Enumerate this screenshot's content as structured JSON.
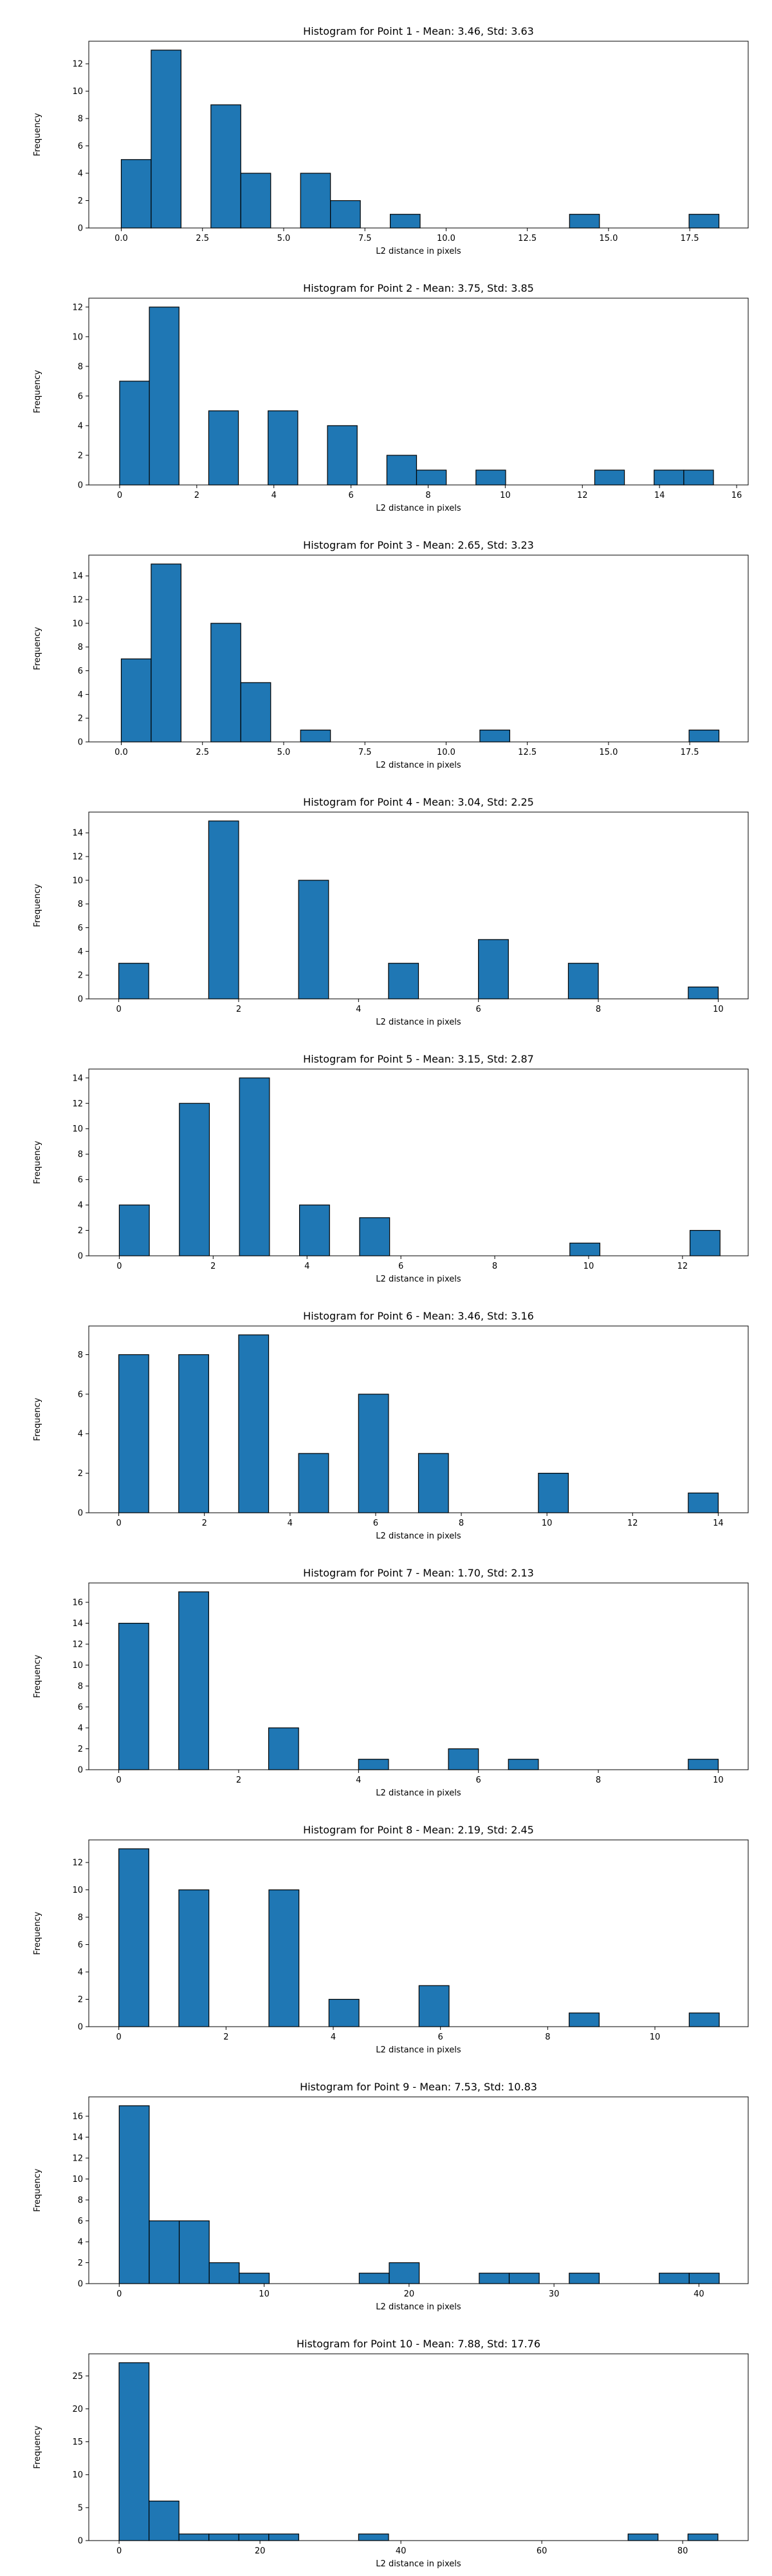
{
  "colors": {
    "bar_fill": "#1f77b4",
    "bar_edge": "#000000",
    "axes": "#000000"
  },
  "chart_data": [
    {
      "type": "bar",
      "title": "Histogram for Point 1 - Mean: 3.46, Std: 3.63",
      "xlabel": "L2 distance in pixels",
      "ylabel": "Frequency",
      "xlim": [
        -1.0,
        19.3
      ],
      "ylim": [
        0,
        13.65
      ],
      "xticks": [
        0.0,
        2.5,
        5.0,
        7.5,
        10.0,
        12.5,
        15.0,
        17.5
      ],
      "xtick_labels": [
        "0.0",
        "2.5",
        "5.0",
        "7.5",
        "10.0",
        "12.5",
        "15.0",
        "17.5"
      ],
      "yticks": [
        0,
        2,
        4,
        6,
        8,
        10,
        12
      ],
      "bin_edges": [
        0.0,
        0.92,
        1.84,
        2.76,
        3.68,
        4.6,
        5.52,
        6.44,
        7.36,
        8.28,
        9.2,
        10.12,
        11.04,
        11.96,
        12.88,
        13.8,
        14.72,
        15.64,
        16.56,
        17.48,
        18.4
      ],
      "counts": [
        5,
        13,
        0,
        9,
        4,
        0,
        4,
        2,
        0,
        1,
        0,
        0,
        0,
        0,
        0,
        1,
        0,
        0,
        0,
        1
      ]
    },
    {
      "type": "bar",
      "title": "Histogram for Point 2 - Mean: 3.75, Std: 3.85",
      "xlabel": "L2 distance in pixels",
      "ylabel": "Frequency",
      "xlim": [
        -0.8,
        16.3
      ],
      "ylim": [
        0,
        12.6
      ],
      "xticks": [
        0,
        2,
        4,
        6,
        8,
        10,
        12,
        14,
        16
      ],
      "xtick_labels": [
        "0",
        "2",
        "4",
        "6",
        "8",
        "10",
        "12",
        "14",
        "16"
      ],
      "yticks": [
        0,
        2,
        4,
        6,
        8,
        10,
        12
      ],
      "bin_edges": [
        0.0,
        0.77,
        1.54,
        2.31,
        3.08,
        3.85,
        4.62,
        5.39,
        6.16,
        6.93,
        7.7,
        8.47,
        9.24,
        10.01,
        10.78,
        11.55,
        12.32,
        13.09,
        13.86,
        14.63,
        15.4
      ],
      "counts": [
        7,
        12,
        0,
        5,
        0,
        5,
        0,
        4,
        0,
        2,
        1,
        0,
        1,
        0,
        0,
        0,
        1,
        0,
        1,
        1
      ]
    },
    {
      "type": "bar",
      "title": "Histogram for Point 3 - Mean: 2.65, Std: 3.23",
      "xlabel": "L2 distance in pixels",
      "ylabel": "Frequency",
      "xlim": [
        -1.0,
        19.3
      ],
      "ylim": [
        0,
        15.75
      ],
      "xticks": [
        0.0,
        2.5,
        5.0,
        7.5,
        10.0,
        12.5,
        15.0,
        17.5
      ],
      "xtick_labels": [
        "0.0",
        "2.5",
        "5.0",
        "7.5",
        "10.0",
        "12.5",
        "15.0",
        "17.5"
      ],
      "yticks": [
        0,
        2,
        4,
        6,
        8,
        10,
        12,
        14
      ],
      "bin_edges": [
        0.0,
        0.92,
        1.84,
        2.76,
        3.68,
        4.6,
        5.52,
        6.44,
        7.36,
        8.28,
        9.2,
        10.12,
        11.04,
        11.96,
        12.88,
        13.8,
        14.72,
        15.64,
        16.56,
        17.48,
        18.4
      ],
      "counts": [
        7,
        15,
        0,
        10,
        5,
        0,
        1,
        0,
        0,
        0,
        0,
        0,
        1,
        0,
        0,
        0,
        0,
        0,
        0,
        1
      ]
    },
    {
      "type": "bar",
      "title": "Histogram for Point 4 - Mean: 3.04, Std: 2.25",
      "xlabel": "L2 distance in pixels",
      "ylabel": "Frequency",
      "xlim": [
        -0.5,
        10.5
      ],
      "ylim": [
        0,
        15.75
      ],
      "xticks": [
        0,
        2,
        4,
        6,
        8,
        10
      ],
      "xtick_labels": [
        "0",
        "2",
        "4",
        "6",
        "8",
        "10"
      ],
      "yticks": [
        0,
        2,
        4,
        6,
        8,
        10,
        12,
        14
      ],
      "bin_edges": [
        0.0,
        0.5,
        1.0,
        1.5,
        2.0,
        2.5,
        3.0,
        3.5,
        4.0,
        4.5,
        5.0,
        5.5,
        6.0,
        6.5,
        7.0,
        7.5,
        8.0,
        8.5,
        9.0,
        9.5,
        10.0
      ],
      "counts": [
        3,
        0,
        0,
        15,
        0,
        0,
        10,
        0,
        0,
        3,
        0,
        0,
        5,
        0,
        0,
        3,
        0,
        0,
        0,
        1
      ]
    },
    {
      "type": "bar",
      "title": "Histogram for Point 5 - Mean: 3.15, Std: 2.87",
      "xlabel": "L2 distance in pixels",
      "ylabel": "Frequency",
      "xlim": [
        -0.65,
        13.4
      ],
      "ylim": [
        0,
        14.7
      ],
      "xticks": [
        0,
        2,
        4,
        6,
        8,
        10,
        12
      ],
      "xtick_labels": [
        "0",
        "2",
        "4",
        "6",
        "8",
        "10",
        "12"
      ],
      "yticks": [
        0,
        2,
        4,
        6,
        8,
        10,
        12,
        14
      ],
      "bin_edges": [
        0.0,
        0.64,
        1.28,
        1.92,
        2.56,
        3.2,
        3.84,
        4.48,
        5.12,
        5.76,
        6.4,
        7.04,
        7.68,
        8.32,
        8.96,
        9.6,
        10.24,
        10.88,
        11.52,
        12.16,
        12.8
      ],
      "counts": [
        4,
        0,
        12,
        0,
        14,
        0,
        4,
        0,
        3,
        0,
        0,
        0,
        0,
        0,
        0,
        1,
        0,
        0,
        0,
        2
      ]
    },
    {
      "type": "bar",
      "title": "Histogram for Point 6 - Mean: 3.46, Std: 3.16",
      "xlabel": "L2 distance in pixels",
      "ylabel": "Frequency",
      "xlim": [
        -0.7,
        14.7
      ],
      "ylim": [
        0,
        9.45
      ],
      "xticks": [
        0,
        2,
        4,
        6,
        8,
        10,
        12,
        14
      ],
      "xtick_labels": [
        "0",
        "2",
        "4",
        "6",
        "8",
        "10",
        "12",
        "14"
      ],
      "yticks": [
        0,
        2,
        4,
        6,
        8
      ],
      "bin_edges": [
        0.0,
        0.7,
        1.4,
        2.1,
        2.8,
        3.5,
        4.2,
        4.9,
        5.6,
        6.3,
        7.0,
        7.7,
        8.4,
        9.1,
        9.8,
        10.5,
        11.2,
        11.9,
        12.6,
        13.3,
        14.0
      ],
      "counts": [
        8,
        0,
        8,
        0,
        9,
        0,
        3,
        0,
        6,
        0,
        3,
        0,
        0,
        0,
        2,
        0,
        0,
        0,
        0,
        1
      ]
    },
    {
      "type": "bar",
      "title": "Histogram for Point 7 - Mean: 1.70, Std: 2.13",
      "xlabel": "L2 distance in pixels",
      "ylabel": "Frequency",
      "xlim": [
        -0.5,
        10.5
      ],
      "ylim": [
        0,
        17.85
      ],
      "xticks": [
        0,
        2,
        4,
        6,
        8,
        10
      ],
      "xtick_labels": [
        "0",
        "2",
        "4",
        "6",
        "8",
        "10"
      ],
      "yticks": [
        0,
        2,
        4,
        6,
        8,
        10,
        12,
        14,
        16
      ],
      "bin_edges": [
        0.0,
        0.5,
        1.0,
        1.5,
        2.0,
        2.5,
        3.0,
        3.5,
        4.0,
        4.5,
        5.0,
        5.5,
        6.0,
        6.5,
        7.0,
        7.5,
        8.0,
        8.5,
        9.0,
        9.5,
        10.0
      ],
      "counts": [
        14,
        0,
        17,
        0,
        0,
        4,
        0,
        0,
        1,
        0,
        0,
        2,
        0,
        1,
        0,
        0,
        0,
        0,
        0,
        1
      ]
    },
    {
      "type": "bar",
      "title": "Histogram for Point 8 - Mean: 2.19, Std: 2.45",
      "xlabel": "L2 distance in pixels",
      "ylabel": "Frequency",
      "xlim": [
        -0.56,
        11.74
      ],
      "ylim": [
        0,
        13.65
      ],
      "xticks": [
        0,
        2,
        4,
        6,
        8,
        10
      ],
      "xtick_labels": [
        "0",
        "2",
        "4",
        "6",
        "8",
        "10"
      ],
      "yticks": [
        0,
        2,
        4,
        6,
        8,
        10,
        12
      ],
      "bin_edges": [
        0.0,
        0.56,
        1.12,
        1.68,
        2.24,
        2.8,
        3.36,
        3.92,
        4.48,
        5.04,
        5.6,
        6.16,
        6.72,
        7.28,
        7.84,
        8.4,
        8.96,
        9.52,
        10.08,
        10.64,
        11.2
      ],
      "counts": [
        13,
        0,
        10,
        0,
        0,
        10,
        0,
        2,
        0,
        0,
        3,
        0,
        0,
        0,
        0,
        1,
        0,
        0,
        0,
        1
      ]
    },
    {
      "type": "bar",
      "title": "Histogram for Point 9 - Mean: 7.53, Std: 10.83",
      "xlabel": "L2 distance in pixels",
      "ylabel": "Frequency",
      "xlim": [
        -2.1,
        43.4
      ],
      "ylim": [
        0,
        17.85
      ],
      "xticks": [
        0,
        10,
        20,
        30,
        40
      ],
      "xtick_labels": [
        "0",
        "10",
        "20",
        "30",
        "40"
      ],
      "yticks": [
        0,
        2,
        4,
        6,
        8,
        10,
        12,
        14,
        16
      ],
      "bin_edges": [
        0.0,
        2.07,
        4.14,
        6.21,
        8.28,
        10.35,
        12.42,
        14.49,
        16.56,
        18.63,
        20.7,
        22.77,
        24.84,
        26.91,
        28.98,
        31.05,
        33.12,
        35.19,
        37.26,
        39.33,
        41.4
      ],
      "counts": [
        17,
        6,
        6,
        2,
        1,
        0,
        0,
        0,
        1,
        2,
        0,
        0,
        1,
        1,
        0,
        1,
        0,
        0,
        1,
        1
      ]
    },
    {
      "type": "bar",
      "title": "Histogram for Point 10 - Mean: 7.88, Std: 17.76",
      "xlabel": "L2 distance in pixels",
      "ylabel": "Frequency",
      "xlim": [
        -4.3,
        89.3
      ],
      "ylim": [
        0,
        28.35
      ],
      "xticks": [
        0,
        20,
        40,
        60,
        80
      ],
      "xtick_labels": [
        "0",
        "20",
        "40",
        "60",
        "80"
      ],
      "yticks": [
        0,
        5,
        10,
        15,
        20,
        25
      ],
      "bin_edges": [
        0.0,
        4.25,
        8.5,
        12.75,
        17.0,
        21.25,
        25.5,
        29.75,
        34.0,
        38.25,
        42.5,
        46.75,
        51.0,
        55.25,
        59.5,
        63.75,
        68.0,
        72.25,
        76.5,
        80.75,
        85.0
      ],
      "counts": [
        27,
        6,
        1,
        1,
        1,
        1,
        0,
        0,
        1,
        0,
        0,
        0,
        0,
        0,
        0,
        0,
        0,
        1,
        0,
        1
      ]
    }
  ]
}
